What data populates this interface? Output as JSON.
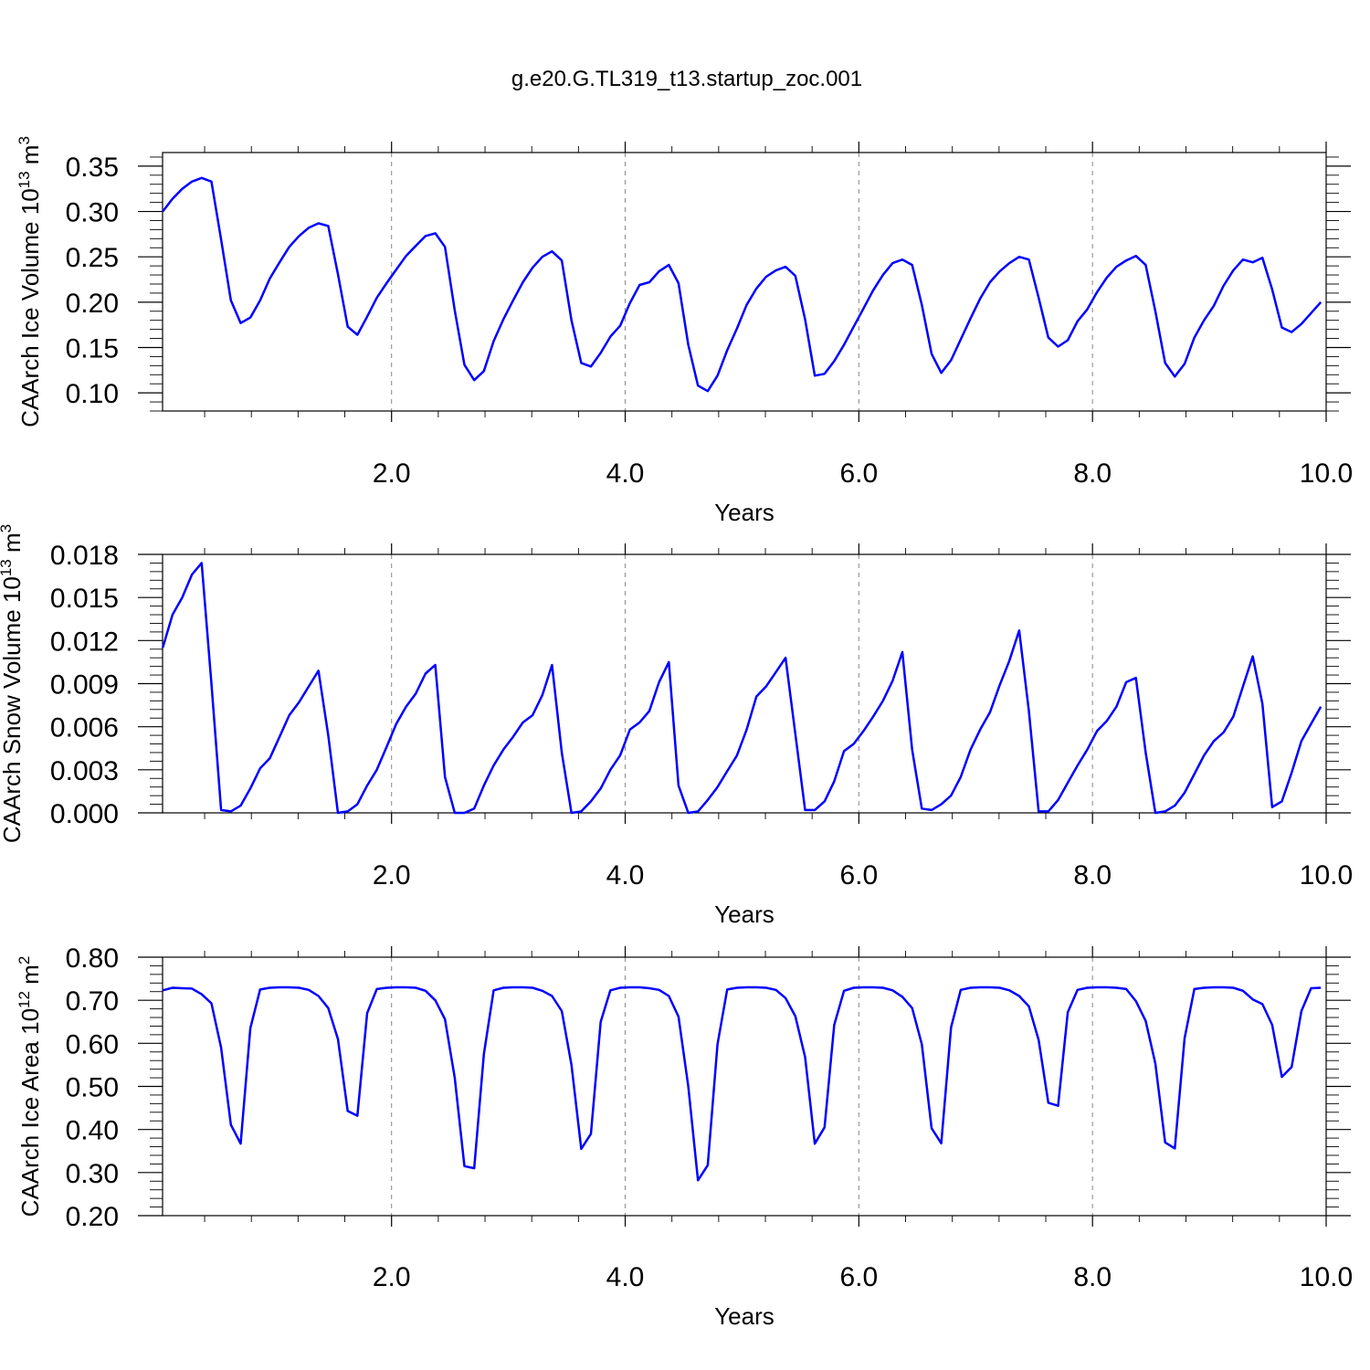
{
  "title": "g.e20.G.TL319_t13.startup_zoc.001",
  "colors": {
    "series": "#0000ff",
    "grid": "#888888",
    "axis": "#000000"
  },
  "chart_data": [
    {
      "type": "line",
      "xlabel": "Years",
      "ylabel": {
        "base": "CAArch Ice Volume 10",
        "exp": "13",
        "unit": " m",
        "unit_exp": "3"
      },
      "xlim": [
        0.04,
        10.0
      ],
      "xticks": [
        2,
        4,
        6,
        8,
        10
      ],
      "xtick_labels": [
        "2.0",
        "4.0",
        "6.0",
        "8.0",
        "10.0"
      ],
      "ylim": [
        0.08,
        0.365
      ],
      "yticks": [
        0.1,
        0.15,
        0.2,
        0.25,
        0.3,
        0.35
      ],
      "ytick_labels": [
        "0.10",
        "0.15",
        "0.20",
        "0.25",
        "0.30",
        "0.35"
      ],
      "grid": "vertical-dashed",
      "series": [
        {
          "x_start": 0.0417,
          "x_step": 0.0833,
          "values": [
            0.3,
            0.314,
            0.325,
            0.333,
            0.337,
            0.333,
            0.269,
            0.202,
            0.177,
            0.183,
            0.202,
            0.226,
            0.244,
            0.261,
            0.273,
            0.282,
            0.287,
            0.284,
            0.231,
            0.173,
            0.164,
            0.184,
            0.205,
            0.221,
            0.236,
            0.251,
            0.262,
            0.273,
            0.276,
            0.261,
            0.191,
            0.131,
            0.114,
            0.124,
            0.157,
            0.181,
            0.202,
            0.222,
            0.238,
            0.25,
            0.256,
            0.246,
            0.18,
            0.133,
            0.129,
            0.144,
            0.162,
            0.174,
            0.199,
            0.219,
            0.222,
            0.234,
            0.241,
            0.221,
            0.153,
            0.108,
            0.102,
            0.119,
            0.147,
            0.171,
            0.197,
            0.215,
            0.228,
            0.235,
            0.239,
            0.229,
            0.181,
            0.119,
            0.121,
            0.135,
            0.153,
            0.173,
            0.193,
            0.213,
            0.23,
            0.243,
            0.247,
            0.241,
            0.197,
            0.143,
            0.122,
            0.136,
            0.159,
            0.182,
            0.204,
            0.222,
            0.234,
            0.243,
            0.25,
            0.247,
            0.205,
            0.161,
            0.151,
            0.158,
            0.179,
            0.192,
            0.211,
            0.227,
            0.239,
            0.246,
            0.251,
            0.241,
            0.19,
            0.133,
            0.118,
            0.132,
            0.161,
            0.18,
            0.196,
            0.218,
            0.235,
            0.247,
            0.244,
            0.249,
            0.214,
            0.172,
            0.167,
            0.176,
            0.188,
            0.2
          ]
        }
      ]
    },
    {
      "type": "line",
      "xlabel": "Years",
      "ylabel": {
        "base": "CAArch Snow Volume 10",
        "exp": "13",
        "unit": " m",
        "unit_exp": "3"
      },
      "xlim": [
        0.04,
        10.0
      ],
      "xticks": [
        2,
        4,
        6,
        8,
        10
      ],
      "xtick_labels": [
        "2.0",
        "4.0",
        "6.0",
        "8.0",
        "10.0"
      ],
      "ylim": [
        0.0,
        0.018
      ],
      "yticks": [
        0.0,
        0.003,
        0.006,
        0.009,
        0.012,
        0.015,
        0.018
      ],
      "ytick_labels": [
        "0.000",
        "0.003",
        "0.006",
        "0.009",
        "0.012",
        "0.015",
        "0.018"
      ],
      "grid": "vertical-dashed",
      "series": [
        {
          "x_start": 0.0417,
          "x_step": 0.0833,
          "values": [
            0.0115,
            0.0138,
            0.015,
            0.0166,
            0.0174,
            0.009,
            0.0002,
            0.0001,
            0.0005,
            0.0017,
            0.0031,
            0.0038,
            0.0053,
            0.0068,
            0.0077,
            0.0088,
            0.0099,
            0.0054,
            0.0,
            0.0001,
            0.0006,
            0.0019,
            0.003,
            0.0046,
            0.0062,
            0.0074,
            0.0083,
            0.0097,
            0.0103,
            0.0025,
            0.0,
            0.0,
            0.0003,
            0.0019,
            0.0033,
            0.0044,
            0.0053,
            0.0063,
            0.0068,
            0.0082,
            0.0103,
            0.0042,
            0.0,
            0.0001,
            0.0008,
            0.0017,
            0.003,
            0.004,
            0.0058,
            0.0063,
            0.0071,
            0.0091,
            0.0105,
            0.0019,
            0.0,
            0.0001,
            0.0009,
            0.0018,
            0.0029,
            0.004,
            0.0058,
            0.0081,
            0.0088,
            0.0098,
            0.0108,
            0.0055,
            0.0002,
            0.0002,
            0.0008,
            0.0022,
            0.0043,
            0.0048,
            0.0057,
            0.0067,
            0.0078,
            0.0092,
            0.0112,
            0.0044,
            0.0003,
            0.0002,
            0.0006,
            0.0012,
            0.0025,
            0.0044,
            0.0058,
            0.007,
            0.0089,
            0.0106,
            0.0127,
            0.0071,
            0.0001,
            0.0001,
            0.0009,
            0.0021,
            0.0033,
            0.0044,
            0.0057,
            0.0064,
            0.0074,
            0.0091,
            0.0094,
            0.0042,
            0.0,
            0.0001,
            0.0005,
            0.0014,
            0.0027,
            0.004,
            0.005,
            0.0056,
            0.0067,
            0.0088,
            0.0109,
            0.0076,
            0.0004,
            0.0008,
            0.0028,
            0.005,
            0.0062,
            0.0074
          ]
        }
      ]
    },
    {
      "type": "line",
      "xlabel": "Years",
      "ylabel": {
        "base": "CAArch Ice Area 10",
        "exp": "12",
        "unit": " m",
        "unit_exp": "2"
      },
      "xlim": [
        0.04,
        10.0
      ],
      "xticks": [
        2,
        4,
        6,
        8,
        10
      ],
      "xtick_labels": [
        "2.0",
        "4.0",
        "6.0",
        "8.0",
        "10.0"
      ],
      "ylim": [
        0.2,
        0.8
      ],
      "yticks": [
        0.2,
        0.3,
        0.4,
        0.5,
        0.6,
        0.7,
        0.8
      ],
      "ytick_labels": [
        "0.20",
        "0.30",
        "0.40",
        "0.50",
        "0.60",
        "0.70",
        "0.80"
      ],
      "grid": "vertical-dashed",
      "series": [
        {
          "x_start": 0.0417,
          "x_step": 0.0833,
          "values": [
            0.723,
            0.729,
            0.728,
            0.727,
            0.714,
            0.693,
            0.59,
            0.411,
            0.367,
            0.635,
            0.725,
            0.729,
            0.73,
            0.73,
            0.729,
            0.724,
            0.71,
            0.682,
            0.61,
            0.443,
            0.432,
            0.67,
            0.726,
            0.729,
            0.73,
            0.73,
            0.729,
            0.722,
            0.7,
            0.656,
            0.52,
            0.315,
            0.31,
            0.575,
            0.723,
            0.729,
            0.73,
            0.73,
            0.729,
            0.722,
            0.71,
            0.675,
            0.55,
            0.355,
            0.39,
            0.65,
            0.723,
            0.729,
            0.73,
            0.73,
            0.728,
            0.724,
            0.71,
            0.662,
            0.5,
            0.282,
            0.317,
            0.598,
            0.725,
            0.729,
            0.73,
            0.73,
            0.729,
            0.724,
            0.705,
            0.663,
            0.568,
            0.367,
            0.405,
            0.643,
            0.722,
            0.729,
            0.73,
            0.73,
            0.729,
            0.723,
            0.708,
            0.682,
            0.598,
            0.403,
            0.368,
            0.637,
            0.724,
            0.729,
            0.73,
            0.73,
            0.729,
            0.723,
            0.71,
            0.686,
            0.608,
            0.462,
            0.455,
            0.672,
            0.724,
            0.729,
            0.73,
            0.73,
            0.729,
            0.726,
            0.698,
            0.652,
            0.553,
            0.37,
            0.356,
            0.612,
            0.726,
            0.729,
            0.73,
            0.73,
            0.729,
            0.722,
            0.702,
            0.691,
            0.643,
            0.522,
            0.545,
            0.675,
            0.728,
            0.729
          ]
        }
      ]
    }
  ]
}
